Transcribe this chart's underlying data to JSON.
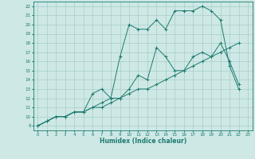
{
  "title": "",
  "xlabel": "Humidex (Indice chaleur)",
  "xlim": [
    -0.5,
    23.5
  ],
  "ylim": [
    8.5,
    22.5
  ],
  "xticks": [
    0,
    1,
    2,
    3,
    4,
    5,
    6,
    7,
    8,
    9,
    10,
    11,
    12,
    13,
    14,
    15,
    16,
    17,
    18,
    19,
    20,
    21,
    22,
    23
  ],
  "yticks": [
    9,
    10,
    11,
    12,
    13,
    14,
    15,
    16,
    17,
    18,
    19,
    20,
    21,
    22
  ],
  "background_color": "#cde8e5",
  "grid_color": "#a8cdc9",
  "line_color": "#1e7b70",
  "line1_x": [
    0,
    1,
    2,
    3,
    4,
    5,
    6,
    7,
    8,
    9,
    10,
    11,
    12,
    13,
    14,
    15,
    16,
    17,
    18,
    19,
    20,
    21,
    22
  ],
  "line1_y": [
    9,
    9.5,
    10,
    10,
    10.5,
    10.5,
    11,
    11,
    11.5,
    12,
    12.5,
    13,
    13,
    13.5,
    14,
    14.5,
    15,
    15.5,
    16,
    16.5,
    17,
    17.5,
    18
  ],
  "line2_x": [
    0,
    1,
    2,
    3,
    4,
    5,
    6,
    7,
    8,
    9,
    10,
    11,
    12,
    13,
    14,
    15,
    16,
    17,
    18,
    19,
    20,
    21,
    22
  ],
  "line2_y": [
    9,
    9.5,
    10,
    10,
    10.5,
    10.5,
    12.5,
    13,
    12,
    16.5,
    20,
    19.5,
    19.5,
    20.5,
    19.5,
    21.5,
    21.5,
    21.5,
    22,
    21.5,
    20.5,
    15.5,
    13
  ],
  "line3_x": [
    0,
    1,
    2,
    3,
    4,
    5,
    6,
    7,
    8,
    9,
    10,
    11,
    12,
    13,
    14,
    15,
    16,
    17,
    18,
    19,
    20,
    21,
    22
  ],
  "line3_y": [
    9,
    9.5,
    10,
    10,
    10.5,
    10.5,
    11,
    11.5,
    12,
    12,
    13,
    14.5,
    14,
    17.5,
    16.5,
    15,
    15,
    16.5,
    17,
    16.5,
    18,
    16,
    13.5
  ]
}
